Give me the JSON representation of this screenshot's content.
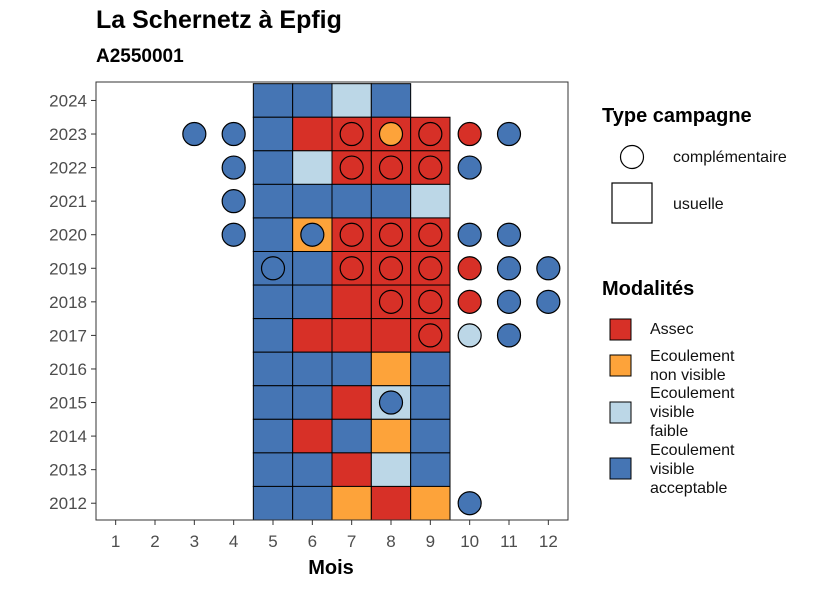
{
  "chart_data": {
    "type": "heatmap",
    "title": "La Schernetz à Epfig",
    "subtitle": "A2550001",
    "xlabel": "Mois",
    "ylabel": "",
    "x_ticks": [
      "1",
      "2",
      "3",
      "4",
      "5",
      "6",
      "7",
      "8",
      "9",
      "10",
      "11",
      "12"
    ],
    "y_ticks": [
      "2012",
      "2013",
      "2014",
      "2015",
      "2016",
      "2017",
      "2018",
      "2019",
      "2020",
      "2021",
      "2022",
      "2023",
      "2024"
    ],
    "xlim": [
      0.5,
      12.5
    ],
    "ylim": [
      2011.5,
      2024.55
    ],
    "grid": false,
    "legend_position": "right",
    "modalites": [
      {
        "key": "assec",
        "label_lines": [
          "Assec"
        ],
        "color": "#D73027"
      },
      {
        "key": "non_visible",
        "label_lines": [
          "Ecoulement",
          "non visible"
        ],
        "color": "#FDA33A"
      },
      {
        "key": "faible",
        "label_lines": [
          "Ecoulement",
          "visible",
          "faible"
        ],
        "color": "#BCD7E7"
      },
      {
        "key": "acceptable",
        "label_lines": [
          "Ecoulement",
          "visible",
          "acceptable"
        ],
        "color": "#4575B4"
      }
    ],
    "types": [
      {
        "key": "complementaire",
        "label": "complémentaire",
        "shape": "circle"
      },
      {
        "key": "usuelle",
        "label": "usuelle",
        "shape": "square"
      }
    ],
    "legend_titles": {
      "type": "Type campagne",
      "modalite": "Modalités"
    },
    "usuelle": [
      {
        "year": 2024,
        "month": 5,
        "value": "acceptable"
      },
      {
        "year": 2024,
        "month": 6,
        "value": "acceptable"
      },
      {
        "year": 2024,
        "month": 7,
        "value": "faible"
      },
      {
        "year": 2024,
        "month": 8,
        "value": "acceptable"
      },
      {
        "year": 2023,
        "month": 5,
        "value": "acceptable"
      },
      {
        "year": 2023,
        "month": 6,
        "value": "assec"
      },
      {
        "year": 2023,
        "month": 7,
        "value": "assec"
      },
      {
        "year": 2023,
        "month": 8,
        "value": "assec"
      },
      {
        "year": 2023,
        "month": 9,
        "value": "assec"
      },
      {
        "year": 2022,
        "month": 5,
        "value": "acceptable"
      },
      {
        "year": 2022,
        "month": 6,
        "value": "faible"
      },
      {
        "year": 2022,
        "month": 7,
        "value": "assec"
      },
      {
        "year": 2022,
        "month": 8,
        "value": "assec"
      },
      {
        "year": 2022,
        "month": 9,
        "value": "assec"
      },
      {
        "year": 2021,
        "month": 5,
        "value": "acceptable"
      },
      {
        "year": 2021,
        "month": 6,
        "value": "acceptable"
      },
      {
        "year": 2021,
        "month": 7,
        "value": "acceptable"
      },
      {
        "year": 2021,
        "month": 8,
        "value": "acceptable"
      },
      {
        "year": 2021,
        "month": 9,
        "value": "faible"
      },
      {
        "year": 2020,
        "month": 5,
        "value": "acceptable"
      },
      {
        "year": 2020,
        "month": 6,
        "value": "non_visible"
      },
      {
        "year": 2020,
        "month": 7,
        "value": "assec"
      },
      {
        "year": 2020,
        "month": 8,
        "value": "assec"
      },
      {
        "year": 2020,
        "month": 9,
        "value": "assec"
      },
      {
        "year": 2019,
        "month": 5,
        "value": "acceptable"
      },
      {
        "year": 2019,
        "month": 6,
        "value": "acceptable"
      },
      {
        "year": 2019,
        "month": 7,
        "value": "assec"
      },
      {
        "year": 2019,
        "month": 8,
        "value": "assec"
      },
      {
        "year": 2019,
        "month": 9,
        "value": "assec"
      },
      {
        "year": 2018,
        "month": 5,
        "value": "acceptable"
      },
      {
        "year": 2018,
        "month": 6,
        "value": "acceptable"
      },
      {
        "year": 2018,
        "month": 7,
        "value": "assec"
      },
      {
        "year": 2018,
        "month": 8,
        "value": "assec"
      },
      {
        "year": 2018,
        "month": 9,
        "value": "assec"
      },
      {
        "year": 2017,
        "month": 5,
        "value": "acceptable"
      },
      {
        "year": 2017,
        "month": 6,
        "value": "assec"
      },
      {
        "year": 2017,
        "month": 7,
        "value": "assec"
      },
      {
        "year": 2017,
        "month": 8,
        "value": "assec"
      },
      {
        "year": 2017,
        "month": 9,
        "value": "assec"
      },
      {
        "year": 2016,
        "month": 5,
        "value": "acceptable"
      },
      {
        "year": 2016,
        "month": 6,
        "value": "acceptable"
      },
      {
        "year": 2016,
        "month": 7,
        "value": "acceptable"
      },
      {
        "year": 2016,
        "month": 8,
        "value": "non_visible"
      },
      {
        "year": 2016,
        "month": 9,
        "value": "acceptable"
      },
      {
        "year": 2015,
        "month": 5,
        "value": "acceptable"
      },
      {
        "year": 2015,
        "month": 6,
        "value": "acceptable"
      },
      {
        "year": 2015,
        "month": 7,
        "value": "assec"
      },
      {
        "year": 2015,
        "month": 8,
        "value": "faible"
      },
      {
        "year": 2015,
        "month": 9,
        "value": "acceptable"
      },
      {
        "year": 2014,
        "month": 5,
        "value": "acceptable"
      },
      {
        "year": 2014,
        "month": 6,
        "value": "assec"
      },
      {
        "year": 2014,
        "month": 7,
        "value": "acceptable"
      },
      {
        "year": 2014,
        "month": 8,
        "value": "non_visible"
      },
      {
        "year": 2014,
        "month": 9,
        "value": "acceptable"
      },
      {
        "year": 2013,
        "month": 5,
        "value": "acceptable"
      },
      {
        "year": 2013,
        "month": 6,
        "value": "acceptable"
      },
      {
        "year": 2013,
        "month": 7,
        "value": "assec"
      },
      {
        "year": 2013,
        "month": 8,
        "value": "faible"
      },
      {
        "year": 2013,
        "month": 9,
        "value": "acceptable"
      },
      {
        "year": 2012,
        "month": 5,
        "value": "acceptable"
      },
      {
        "year": 2012,
        "month": 6,
        "value": "acceptable"
      },
      {
        "year": 2012,
        "month": 7,
        "value": "non_visible"
      },
      {
        "year": 2012,
        "month": 8,
        "value": "assec"
      },
      {
        "year": 2012,
        "month": 9,
        "value": "non_visible"
      }
    ],
    "complementaire": [
      {
        "year": 2023,
        "month": 3,
        "value": "acceptable"
      },
      {
        "year": 2023,
        "month": 4,
        "value": "acceptable"
      },
      {
        "year": 2023,
        "month": 7,
        "value": "assec"
      },
      {
        "year": 2023,
        "month": 8,
        "value": "non_visible"
      },
      {
        "year": 2023,
        "month": 9,
        "value": "assec"
      },
      {
        "year": 2023,
        "month": 10,
        "value": "assec"
      },
      {
        "year": 2023,
        "month": 11,
        "value": "acceptable"
      },
      {
        "year": 2022,
        "month": 4,
        "value": "acceptable"
      },
      {
        "year": 2022,
        "month": 7,
        "value": "assec"
      },
      {
        "year": 2022,
        "month": 8,
        "value": "assec"
      },
      {
        "year": 2022,
        "month": 9,
        "value": "assec"
      },
      {
        "year": 2022,
        "month": 10,
        "value": "acceptable"
      },
      {
        "year": 2021,
        "month": 4,
        "value": "acceptable"
      },
      {
        "year": 2020,
        "month": 4,
        "value": "acceptable"
      },
      {
        "year": 2020,
        "month": 6,
        "value": "acceptable"
      },
      {
        "year": 2020,
        "month": 7,
        "value": "assec"
      },
      {
        "year": 2020,
        "month": 8,
        "value": "assec"
      },
      {
        "year": 2020,
        "month": 9,
        "value": "assec"
      },
      {
        "year": 2020,
        "month": 10,
        "value": "acceptable"
      },
      {
        "year": 2020,
        "month": 11,
        "value": "acceptable"
      },
      {
        "year": 2019,
        "month": 5,
        "value": "acceptable"
      },
      {
        "year": 2019,
        "month": 7,
        "value": "assec"
      },
      {
        "year": 2019,
        "month": 8,
        "value": "assec"
      },
      {
        "year": 2019,
        "month": 9,
        "value": "assec"
      },
      {
        "year": 2019,
        "month": 10,
        "value": "assec"
      },
      {
        "year": 2019,
        "month": 11,
        "value": "acceptable"
      },
      {
        "year": 2019,
        "month": 12,
        "value": "acceptable"
      },
      {
        "year": 2018,
        "month": 8,
        "value": "assec"
      },
      {
        "year": 2018,
        "month": 9,
        "value": "assec"
      },
      {
        "year": 2018,
        "month": 10,
        "value": "assec"
      },
      {
        "year": 2018,
        "month": 11,
        "value": "acceptable"
      },
      {
        "year": 2018,
        "month": 12,
        "value": "acceptable"
      },
      {
        "year": 2017,
        "month": 9,
        "value": "assec"
      },
      {
        "year": 2017,
        "month": 10,
        "value": "faible"
      },
      {
        "year": 2017,
        "month": 11,
        "value": "acceptable"
      },
      {
        "year": 2015,
        "month": 8,
        "value": "acceptable"
      },
      {
        "year": 2012,
        "month": 10,
        "value": "acceptable"
      }
    ]
  }
}
